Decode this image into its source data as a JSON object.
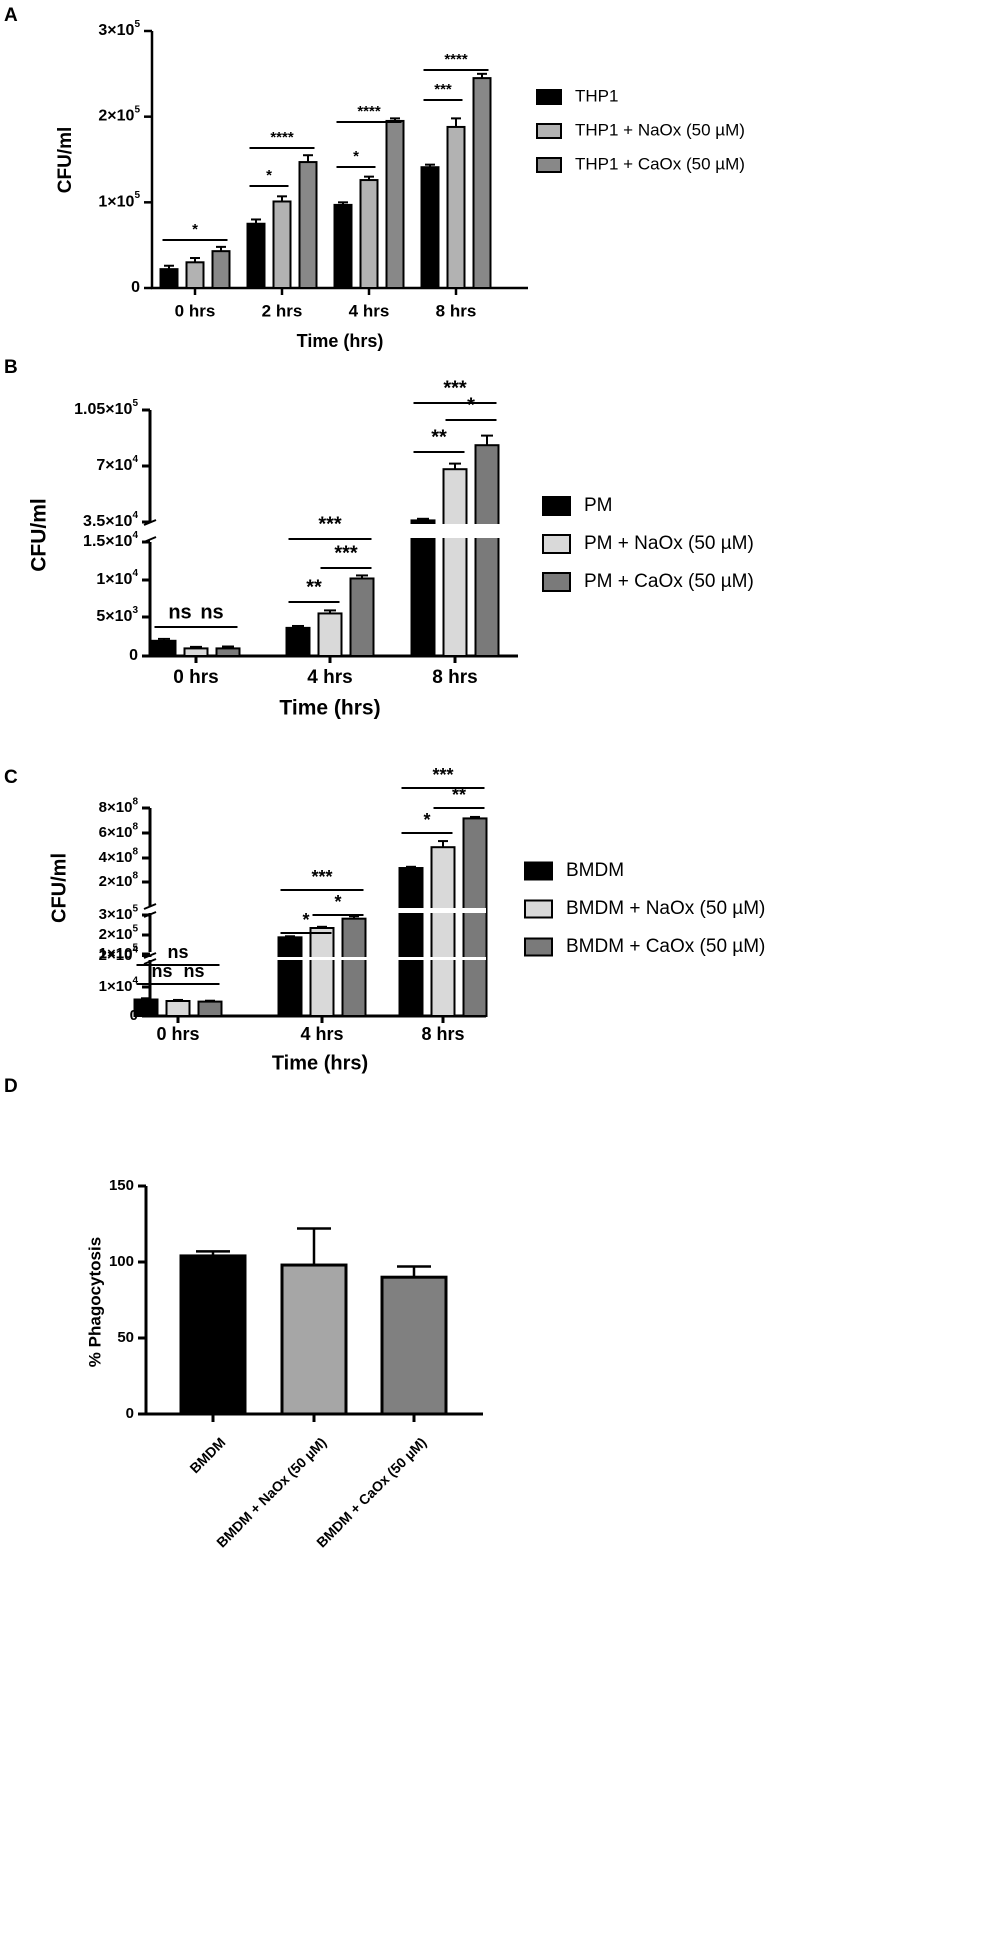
{
  "chart_data": [
    {
      "panel_label": "A",
      "type": "bar",
      "categories": [
        "0 hrs",
        "2 hrs",
        "4 hrs",
        "8 hrs"
      ],
      "xlabel": "Time (hrs)",
      "ylabel": "CFU/ml",
      "ylim": [
        0,
        300000
      ],
      "yticks": [
        {
          "value": 0,
          "base": "0",
          "sup": ""
        },
        {
          "value": 100000,
          "base": "1×10",
          "sup": "5"
        },
        {
          "value": 200000,
          "base": "2×10",
          "sup": "5"
        },
        {
          "value": 300000,
          "base": "3×10",
          "sup": "5"
        }
      ],
      "series": [
        {
          "name": "THP1",
          "color": "#000000",
          "values": [
            22000,
            75000,
            97000,
            141000
          ],
          "errors": [
            4000,
            5000,
            3000,
            3000
          ]
        },
        {
          "name": "THP1 + NaOx (50 µM)",
          "color": "#b2b2b2",
          "values": [
            30000,
            101000,
            126000,
            188000
          ],
          "errors": [
            5000,
            6000,
            4000,
            10000
          ]
        },
        {
          "name": "THP1 + CaOx (50 µM)",
          "color": "#888888",
          "values": [
            43000,
            147000,
            195000,
            245000
          ],
          "errors": [
            5000,
            8000,
            3000,
            5000
          ]
        }
      ],
      "significance": [
        {
          "category": 0,
          "from": 0,
          "to": 2,
          "label": "*"
        },
        {
          "category": 1,
          "from": 0,
          "to": 1,
          "label": "*"
        },
        {
          "category": 1,
          "from": 0,
          "to": 2,
          "label": "****"
        },
        {
          "category": 2,
          "from": 0,
          "to": 1,
          "label": "*"
        },
        {
          "category": 2,
          "from": 0,
          "to": 2,
          "label": "****"
        },
        {
          "category": 3,
          "from": 0,
          "to": 1,
          "label": "***"
        },
        {
          "category": 3,
          "from": 0,
          "to": 2,
          "label": "****"
        }
      ],
      "grid": false,
      "legend": "right"
    },
    {
      "panel_label": "B",
      "type": "bar",
      "categories": [
        "0 hrs",
        "4 hrs",
        "8 hrs"
      ],
      "xlabel": "Time (hrs)",
      "ylabel": "CFU/ml",
      "axis_break": true,
      "segments": [
        {
          "ylim": [
            0,
            15000
          ]
        },
        {
          "ylim": [
            35000,
            105000
          ]
        }
      ],
      "yticks": [
        {
          "value": 0,
          "base": "0",
          "sup": ""
        },
        {
          "value": 5000,
          "base": "5×10",
          "sup": "3"
        },
        {
          "value": 10000,
          "base": "1×10",
          "sup": "4"
        },
        {
          "value": 15000,
          "base": "1.5×10",
          "sup": "4"
        },
        {
          "value": 35000,
          "base": "3.5×10",
          "sup": "4"
        },
        {
          "value": 70000,
          "base": "7×10",
          "sup": "4"
        },
        {
          "value": 105000,
          "base": "1.05×10",
          "sup": "5"
        }
      ],
      "series": [
        {
          "name": "PM",
          "color": "#000000",
          "values": [
            2000,
            3700,
            36000
          ],
          "errors": [
            250,
            250,
            1000
          ]
        },
        {
          "name": "PM + NaOx (50 µM)",
          "color": "#d9d9d9",
          "values": [
            1000,
            5600,
            68000
          ],
          "errors": [
            200,
            400,
            3500
          ]
        },
        {
          "name": "PM + CaOx (50 µM)",
          "color": "#7a7a7a",
          "values": [
            1000,
            10200,
            83000
          ],
          "errors": [
            250,
            400,
            6000
          ]
        }
      ],
      "significance": [
        {
          "category": 0,
          "from": 0,
          "to": 1,
          "label": "ns"
        },
        {
          "category": 0,
          "from": 1,
          "to": 2,
          "label": "ns"
        },
        {
          "category": 1,
          "from": 0,
          "to": 1,
          "label": "**"
        },
        {
          "category": 1,
          "from": 1,
          "to": 2,
          "label": "***"
        },
        {
          "category": 1,
          "from": 0,
          "to": 2,
          "label": "***"
        },
        {
          "category": 2,
          "from": 0,
          "to": 1,
          "label": "**"
        },
        {
          "category": 2,
          "from": 1,
          "to": 2,
          "label": "*"
        },
        {
          "category": 2,
          "from": 0,
          "to": 2,
          "label": "***"
        }
      ],
      "grid": false,
      "legend": "right"
    },
    {
      "panel_label": "C",
      "type": "bar",
      "categories": [
        "0 hrs",
        "4 hrs",
        "8 hrs"
      ],
      "xlabel": "Time (hrs)",
      "ylabel": "CFU/ml",
      "axis_break": true,
      "segments": [
        {
          "ylim": [
            0,
            20000
          ]
        },
        {
          "ylim": [
            0,
            300000
          ]
        },
        {
          "ylim": [
            0,
            800000000
          ]
        }
      ],
      "yticks": [
        {
          "value": 0,
          "base": "0",
          "sup": ""
        },
        {
          "value": 10000,
          "base": "1×10",
          "sup": "4"
        },
        {
          "value": 20000,
          "base": "2×10",
          "sup": "4"
        },
        {
          "value": 100000,
          "base": "1×10",
          "sup": "5"
        },
        {
          "value": 200000,
          "base": "2×10",
          "sup": "5"
        },
        {
          "value": 300000,
          "base": "3×10",
          "sup": "5"
        },
        {
          "value": 200000000,
          "base": "2×10",
          "sup": "8"
        },
        {
          "value": 400000000,
          "base": "4×10",
          "sup": "8"
        },
        {
          "value": 600000000,
          "base": "6×10",
          "sup": "8"
        },
        {
          "value": 800000000,
          "base": "8×10",
          "sup": "8"
        }
      ],
      "series": [
        {
          "name": "BMDM",
          "color": "#000000",
          "values": [
            5500,
            110000,
            310000000
          ],
          "errors": [
            400,
            8000,
            10000000
          ]
        },
        {
          "name": "BMDM + NaOx (50 µM)",
          "color": "#d9d9d9",
          "values": [
            5000,
            180000,
            480000000
          ],
          "errors": [
            350,
            9000,
            50000000
          ]
        },
        {
          "name": "BMDM + CaOx (50 µM)",
          "color": "#7a7a7a",
          "values": [
            4800,
            250000,
            715000000
          ],
          "errors": [
            300,
            18000,
            12000000
          ]
        }
      ],
      "significance": [
        {
          "category": 0,
          "from": 0,
          "to": 1,
          "label": "ns"
        },
        {
          "category": 0,
          "from": 1,
          "to": 2,
          "label": "ns"
        },
        {
          "category": 0,
          "from": 0,
          "to": 2,
          "label": "ns"
        },
        {
          "category": 1,
          "from": 0,
          "to": 1,
          "label": "*"
        },
        {
          "category": 1,
          "from": 1,
          "to": 2,
          "label": "*"
        },
        {
          "category": 1,
          "from": 0,
          "to": 2,
          "label": "***"
        },
        {
          "category": 2,
          "from": 0,
          "to": 1,
          "label": "*"
        },
        {
          "category": 2,
          "from": 1,
          "to": 2,
          "label": "**"
        },
        {
          "category": 2,
          "from": 0,
          "to": 2,
          "label": "***"
        }
      ],
      "grid": false,
      "legend": "right"
    },
    {
      "panel_label": "D",
      "type": "bar",
      "categories": [
        "BMDM",
        "BMDM + NaOx (50 µM)",
        "BMDM + CaOx (50 µM)"
      ],
      "xlabel": "",
      "ylabel": "% Phagocytosis",
      "ylim": [
        0,
        150
      ],
      "yticks": [
        {
          "value": 0,
          "base": "0",
          "sup": ""
        },
        {
          "value": 50,
          "base": "50",
          "sup": ""
        },
        {
          "value": 100,
          "base": "100",
          "sup": ""
        },
        {
          "value": 150,
          "base": "150",
          "sup": ""
        }
      ],
      "values": [
        104,
        98,
        90
      ],
      "errors": [
        3,
        24,
        7
      ],
      "colors": [
        "#000000",
        "#a6a6a6",
        "#808080"
      ],
      "grid": false,
      "legend": "none"
    }
  ]
}
